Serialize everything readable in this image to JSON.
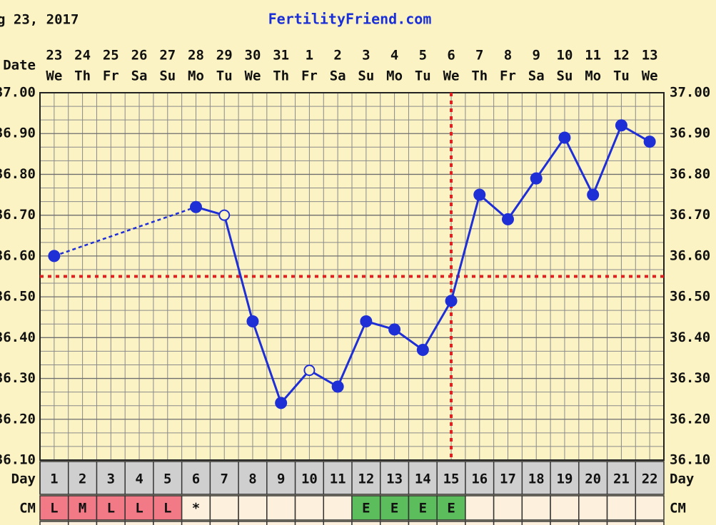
{
  "chart_data": {
    "type": "line",
    "title": "FertilityFriend.com",
    "date": "g 23, 2017",
    "date_label": "Date",
    "day_label": "Day",
    "cm_label": "CM",
    "dates": [
      "23",
      "24",
      "25",
      "26",
      "27",
      "28",
      "29",
      "30",
      "31",
      "1",
      "2",
      "3",
      "4",
      "5",
      "6",
      "7",
      "8",
      "9",
      "10",
      "11",
      "12",
      "13"
    ],
    "weekdays": [
      "We",
      "Th",
      "Fr",
      "Sa",
      "Su",
      "Mo",
      "Tu",
      "We",
      "Th",
      "Fr",
      "Sa",
      "Su",
      "Mo",
      "Tu",
      "We",
      "Th",
      "Fr",
      "Sa",
      "Su",
      "Mo",
      "Tu",
      "We"
    ],
    "categories": [
      "1",
      "2",
      "3",
      "4",
      "5",
      "6",
      "7",
      "8",
      "9",
      "10",
      "11",
      "12",
      "13",
      "14",
      "15",
      "16",
      "17",
      "18",
      "19",
      "20",
      "21",
      "22"
    ],
    "values": [
      36.6,
      null,
      null,
      null,
      null,
      36.72,
      36.7,
      36.44,
      36.24,
      36.32,
      36.28,
      36.44,
      36.42,
      36.37,
      36.49,
      36.75,
      36.69,
      36.79,
      36.89,
      36.75,
      36.92,
      36.88
    ],
    "hollow": [
      false,
      null,
      null,
      null,
      null,
      false,
      true,
      false,
      false,
      true,
      false,
      false,
      false,
      false,
      false,
      false,
      false,
      false,
      false,
      false,
      false,
      false
    ],
    "color": "#1f2fd6",
    "coverline": 36.55,
    "coverline_color": "#e02020",
    "ovulation_day": "15",
    "cm": [
      "L",
      "M",
      "L",
      "L",
      "L",
      "*",
      null,
      null,
      null,
      null,
      null,
      "E",
      "E",
      "E",
      "E",
      null,
      null,
      null,
      null,
      null,
      null,
      null
    ],
    "cm_colors": [
      "#f27a86",
      "#f27a86",
      "#f27a86",
      "#f27a86",
      "#f27a86",
      "#fdf0dc",
      "#fdf0dc",
      "#fdf0dc",
      "#fdf0dc",
      "#fdf0dc",
      "#fdf0dc",
      "#5cbd5c",
      "#5cbd5c",
      "#5cbd5c",
      "#5cbd5c",
      "#fdf0dc",
      "#fdf0dc",
      "#fdf0dc",
      "#fdf0dc",
      "#fdf0dc",
      "#fdf0dc",
      "#fdf0dc"
    ],
    "ylim": [
      36.1,
      37.0
    ],
    "yticks": [
      {
        "value": 36.1,
        "label": "36.10"
      },
      {
        "value": 36.2,
        "label": "36.20"
      },
      {
        "value": 36.3,
        "label": "36.30"
      },
      {
        "value": 36.4,
        "label": "36.40"
      },
      {
        "value": 36.5,
        "label": "36.50"
      },
      {
        "value": 36.6,
        "label": "36.60"
      },
      {
        "value": 36.7,
        "label": "36.70"
      },
      {
        "value": 36.8,
        "label": "36.80"
      },
      {
        "value": 36.9,
        "label": "36.90"
      },
      {
        "value": 37.0,
        "label": "37.00"
      }
    ],
    "grid": true
  }
}
